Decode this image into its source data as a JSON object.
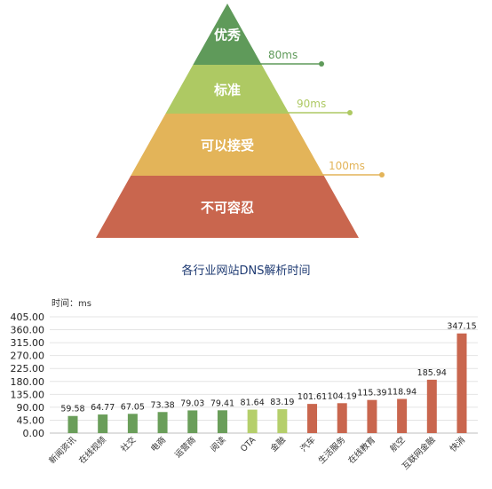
{
  "pyramid": {
    "levels": [
      {
        "label": "优秀",
        "color": "#5f9a5a",
        "threshold": "80ms"
      },
      {
        "label": "标准",
        "color": "#aec963",
        "threshold": "90ms"
      },
      {
        "label": "可以接受",
        "color": "#e3b459",
        "threshold": "100ms"
      },
      {
        "label": "不可容忍",
        "color": "#c9664e",
        "threshold": ""
      }
    ]
  },
  "chart_data": {
    "type": "bar",
    "title": "各行业网站DNS解析时间",
    "unit_label": "时间：ms",
    "categories": [
      "新闻资讯",
      "在线视频",
      "社交",
      "电商",
      "运营商",
      "阅读",
      "OTA",
      "金融",
      "汽车",
      "生活服务",
      "在线教育",
      "航空",
      "互联网金融",
      "快消"
    ],
    "values": [
      59.58,
      64.77,
      67.05,
      73.38,
      79.03,
      79.41,
      81.64,
      83.19,
      101.61,
      104.19,
      115.39,
      118.94,
      185.94,
      347.15
    ],
    "value_labels": [
      "59.58",
      "64.77",
      "67.05",
      "73.38",
      "79.03",
      "79.41",
      "81.64",
      "83.19",
      "101.61",
      "104.19",
      "115.39",
      "118.94",
      "185.94",
      "347.15"
    ],
    "bar_colors": [
      "#6a9e5a",
      "#6a9e5a",
      "#6a9e5a",
      "#6a9e5a",
      "#6a9e5a",
      "#6a9e5a",
      "#b5cf6b",
      "#b5cf6b",
      "#c9664e",
      "#c9664e",
      "#c9664e",
      "#c9664e",
      "#c9664e",
      "#c9664e"
    ],
    "yticks": [
      "0.00",
      "45.00",
      "90.00",
      "135.00",
      "180.00",
      "225.00",
      "270.00",
      "315.00",
      "360.00",
      "405.00"
    ],
    "ylim": [
      0,
      405
    ],
    "grid": true
  }
}
